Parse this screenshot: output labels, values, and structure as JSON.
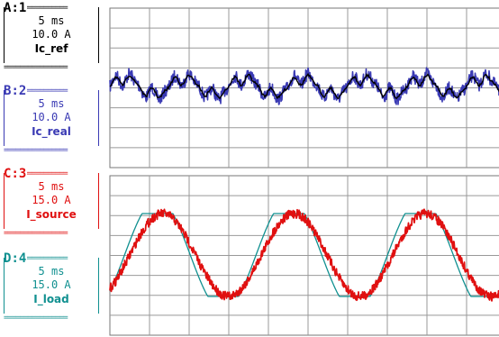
{
  "channels": [
    {
      "id": "A",
      "num": "1",
      "timebase": "5 ms",
      "scale": "10.0 A",
      "name": "Ic_ref",
      "color": "#000000"
    },
    {
      "id": "B",
      "num": "2",
      "timebase": "5 ms",
      "scale": "10.0 A",
      "name": "Ic_real",
      "color": "#3a3ab4"
    },
    {
      "id": "C",
      "num": "3",
      "timebase": "5 ms",
      "scale": "15.0 A",
      "name": "I_source",
      "color": "#e01010"
    },
    {
      "id": "D",
      "num": "4",
      "timebase": "5 ms",
      "scale": "15.0 A",
      "name": "I_load",
      "color": "#109090"
    }
  ],
  "chart_data": [
    {
      "type": "line",
      "panel": "top",
      "grid": true,
      "series": [
        {
          "name": "Ic_real",
          "color": "#3a3ab4",
          "channel": "B"
        },
        {
          "name": "Ic_ref",
          "color": "#000000",
          "channel": "A"
        }
      ]
    },
    {
      "type": "line",
      "panel": "bottom",
      "grid": true,
      "series": [
        {
          "name": "I_load",
          "color": "#109090",
          "channel": "D"
        },
        {
          "name": "I_source",
          "color": "#e01010",
          "channel": "C"
        }
      ]
    }
  ]
}
